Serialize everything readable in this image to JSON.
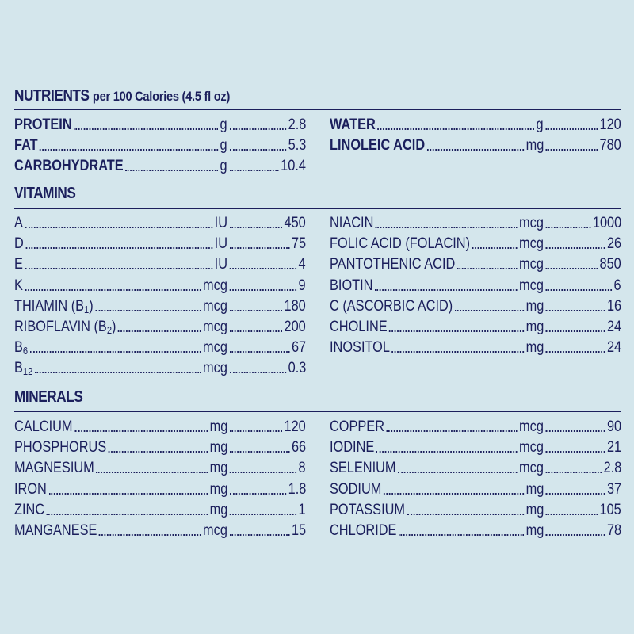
{
  "nutrients": {
    "title": "NUTRIENTS",
    "subtitle": "per 100 Calories (4.5 fl oz)",
    "left": [
      {
        "name": "PROTEIN",
        "unit": "g",
        "value": "2.8"
      },
      {
        "name": "FAT",
        "unit": "g",
        "value": "5.3"
      },
      {
        "name": "CARBOHYDRATE",
        "unit": "g",
        "value": "10.4"
      }
    ],
    "right": [
      {
        "name": "WATER",
        "unit": "g",
        "value": "120"
      },
      {
        "name": "LINOLEIC ACID",
        "unit": "mg",
        "value": "780"
      }
    ]
  },
  "vitamins": {
    "title": "VITAMINS",
    "left": [
      {
        "name": "A",
        "unit": "IU",
        "value": "450"
      },
      {
        "name": "D",
        "unit": "IU",
        "value": "75"
      },
      {
        "name": "E",
        "unit": "IU",
        "value": "4"
      },
      {
        "name": "K",
        "unit": "mcg",
        "value": "9"
      },
      {
        "name": "THIAMIN (B",
        "sub": "1",
        "suffix": ")",
        "unit": "mcg",
        "value": "180"
      },
      {
        "name": "RIBOFLAVIN (B",
        "sub": "2",
        "suffix": ")",
        "unit": "mcg",
        "value": "200"
      },
      {
        "name": "B",
        "sub": "6",
        "suffix": "",
        "unit": "mcg",
        "value": "67"
      },
      {
        "name": "B",
        "sub": "12",
        "suffix": "",
        "unit": "mcg",
        "value": "0.3"
      }
    ],
    "right": [
      {
        "name": "NIACIN",
        "unit": "mcg",
        "value": "1000"
      },
      {
        "name": "FOLIC ACID (FOLACIN)",
        "unit": "mcg",
        "value": "26"
      },
      {
        "name": "PANTOTHENIC ACID",
        "unit": "mcg",
        "value": "850"
      },
      {
        "name": "BIOTIN",
        "unit": "mcg",
        "value": "6"
      },
      {
        "name": "C (ASCORBIC ACID)",
        "unit": "mg",
        "value": "16"
      },
      {
        "name": "CHOLINE",
        "unit": "mg",
        "value": "24"
      },
      {
        "name": "INOSITOL",
        "unit": "mg",
        "value": "24"
      }
    ]
  },
  "minerals": {
    "title": "MINERALS",
    "left": [
      {
        "name": "CALCIUM",
        "unit": "mg",
        "value": "120"
      },
      {
        "name": "PHOSPHORUS",
        "unit": "mg",
        "value": "66"
      },
      {
        "name": "MAGNESIUM",
        "unit": "mg",
        "value": "8"
      },
      {
        "name": "IRON",
        "unit": "mg",
        "value": "1.8"
      },
      {
        "name": "ZINC",
        "unit": "mg",
        "value": "1"
      },
      {
        "name": "MANGANESE",
        "unit": "mcg",
        "value": "15"
      }
    ],
    "right": [
      {
        "name": "COPPER",
        "unit": "mcg",
        "value": "90"
      },
      {
        "name": "IODINE",
        "unit": "mcg",
        "value": "21"
      },
      {
        "name": "SELENIUM",
        "unit": "mcg",
        "value": "2.8"
      },
      {
        "name": "SODIUM",
        "unit": "mg",
        "value": "37"
      },
      {
        "name": "POTASSIUM",
        "unit": "mg",
        "value": "105"
      },
      {
        "name": "CHLORIDE",
        "unit": "mg",
        "value": "78"
      }
    ]
  }
}
